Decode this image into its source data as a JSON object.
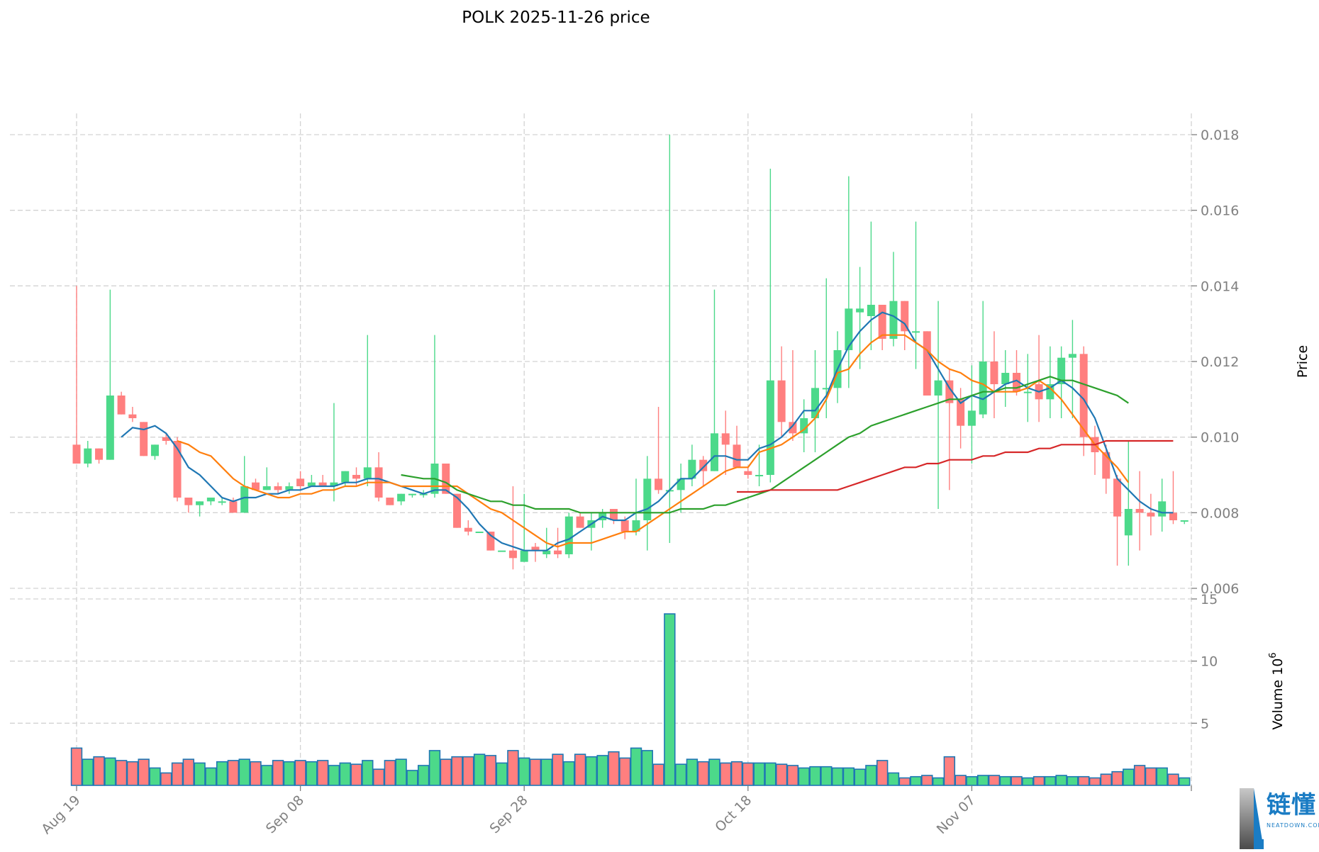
{
  "header": {
    "title": "POLK  2025-11-26  price"
  },
  "axes": {
    "price_label": "Price",
    "volume_label": "Volume  10",
    "volume_exp": "6",
    "price_ticks": [
      "0.018",
      "0.016",
      "0.014",
      "0.012",
      "0.010",
      "0.008",
      "0.006"
    ],
    "volume_ticks": [
      "15",
      "10",
      "5"
    ],
    "x_ticks": [
      "Aug 19",
      "Sep 08",
      "Sep 28",
      "Oct 18",
      "Nov 07"
    ]
  },
  "colors": {
    "up": "#4cd98a",
    "down": "#ff7f7f",
    "ma_blue": "#1f77b4",
    "ma_orange": "#ff7f0e",
    "ma_green": "#2ca02c",
    "ma_red": "#d62728",
    "grid": "#d3d3d3",
    "vol_edge": "#1f77b4"
  },
  "watermark": {
    "text": "链懂",
    "sub": "NEATDOWN.COM"
  },
  "chart_data": {
    "type": "candlestick",
    "title": "POLK  2025-11-26  price",
    "xlabel": "",
    "ylabel": "Price",
    "ylabel2": "Volume 10^6",
    "ylim": [
      0.0059,
      0.0185
    ],
    "ylim_volume": [
      0,
      15.8
    ],
    "grid": true,
    "x_tick_labels": [
      "Aug 19",
      "Sep 08",
      "Sep 28",
      "Oct 18",
      "Nov 07"
    ],
    "start_date": "2025-08-19",
    "end_date": "2025-11-26",
    "candles": [
      {
        "o": 0.0098,
        "h": 0.014,
        "l": 0.0093,
        "c": 0.0093,
        "v": 3.0
      },
      {
        "o": 0.0093,
        "h": 0.0099,
        "l": 0.0092,
        "c": 0.0097,
        "v": 2.1
      },
      {
        "o": 0.0097,
        "h": 0.0097,
        "l": 0.0093,
        "c": 0.0094,
        "v": 2.3
      },
      {
        "o": 0.0094,
        "h": 0.0139,
        "l": 0.0094,
        "c": 0.0111,
        "v": 2.2
      },
      {
        "o": 0.0111,
        "h": 0.0112,
        "l": 0.0106,
        "c": 0.0106,
        "v": 2.0
      },
      {
        "o": 0.0106,
        "h": 0.0108,
        "l": 0.0104,
        "c": 0.0105,
        "v": 1.9
      },
      {
        "o": 0.0104,
        "h": 0.0104,
        "l": 0.0095,
        "c": 0.0095,
        "v": 2.1
      },
      {
        "o": 0.0095,
        "h": 0.0098,
        "l": 0.0094,
        "c": 0.0098,
        "v": 1.4
      },
      {
        "o": 0.01,
        "h": 0.0101,
        "l": 0.0098,
        "c": 0.0099,
        "v": 1.0
      },
      {
        "o": 0.0099,
        "h": 0.01,
        "l": 0.0083,
        "c": 0.0084,
        "v": 1.8
      },
      {
        "o": 0.0084,
        "h": 0.0084,
        "l": 0.008,
        "c": 0.0082,
        "v": 2.1
      },
      {
        "o": 0.0082,
        "h": 0.0083,
        "l": 0.0079,
        "c": 0.0083,
        "v": 1.8
      },
      {
        "o": 0.0083,
        "h": 0.0084,
        "l": 0.0082,
        "c": 0.0084,
        "v": 1.4
      },
      {
        "o": 0.0083,
        "h": 0.0084,
        "l": 0.0082,
        "c": 0.0083,
        "v": 1.9
      },
      {
        "o": 0.0083,
        "h": 0.0084,
        "l": 0.008,
        "c": 0.008,
        "v": 2.0
      },
      {
        "o": 0.008,
        "h": 0.0095,
        "l": 0.008,
        "c": 0.0087,
        "v": 2.1
      },
      {
        "o": 0.0088,
        "h": 0.0089,
        "l": 0.0086,
        "c": 0.0086,
        "v": 1.9
      },
      {
        "o": 0.0086,
        "h": 0.0092,
        "l": 0.0086,
        "c": 0.0087,
        "v": 1.6
      },
      {
        "o": 0.0087,
        "h": 0.0088,
        "l": 0.0085,
        "c": 0.0086,
        "v": 2.0
      },
      {
        "o": 0.0086,
        "h": 0.0088,
        "l": 0.0085,
        "c": 0.0087,
        "v": 1.9
      },
      {
        "o": 0.0089,
        "h": 0.0091,
        "l": 0.0086,
        "c": 0.0087,
        "v": 2.0
      },
      {
        "o": 0.0087,
        "h": 0.009,
        "l": 0.0087,
        "c": 0.0088,
        "v": 1.9
      },
      {
        "o": 0.0088,
        "h": 0.009,
        "l": 0.0087,
        "c": 0.0087,
        "v": 2.0
      },
      {
        "o": 0.0087,
        "h": 0.0109,
        "l": 0.0083,
        "c": 0.0088,
        "v": 1.6
      },
      {
        "o": 0.0088,
        "h": 0.0091,
        "l": 0.0087,
        "c": 0.0091,
        "v": 1.8
      },
      {
        "o": 0.009,
        "h": 0.0092,
        "l": 0.0087,
        "c": 0.0089,
        "v": 1.7
      },
      {
        "o": 0.0089,
        "h": 0.0127,
        "l": 0.0087,
        "c": 0.0092,
        "v": 2.0
      },
      {
        "o": 0.0092,
        "h": 0.0096,
        "l": 0.0083,
        "c": 0.0084,
        "v": 1.3
      },
      {
        "o": 0.0084,
        "h": 0.0084,
        "l": 0.0082,
        "c": 0.0082,
        "v": 2.0
      },
      {
        "o": 0.0083,
        "h": 0.0085,
        "l": 0.0082,
        "c": 0.0085,
        "v": 2.1
      },
      {
        "o": 0.0085,
        "h": 0.0085,
        "l": 0.0084,
        "c": 0.0085,
        "v": 1.2
      },
      {
        "o": 0.0085,
        "h": 0.0086,
        "l": 0.0084,
        "c": 0.0085,
        "v": 1.6
      },
      {
        "o": 0.0085,
        "h": 0.0127,
        "l": 0.0084,
        "c": 0.0093,
        "v": 2.8
      },
      {
        "o": 0.0093,
        "h": 0.0093,
        "l": 0.0085,
        "c": 0.0085,
        "v": 2.1
      },
      {
        "o": 0.0085,
        "h": 0.0085,
        "l": 0.0076,
        "c": 0.0076,
        "v": 2.3
      },
      {
        "o": 0.0076,
        "h": 0.0078,
        "l": 0.0074,
        "c": 0.0075,
        "v": 2.3
      },
      {
        "o": 0.0075,
        "h": 0.0075,
        "l": 0.0075,
        "c": 0.0075,
        "v": 2.5
      },
      {
        "o": 0.0075,
        "h": 0.0075,
        "l": 0.007,
        "c": 0.007,
        "v": 2.4
      },
      {
        "o": 0.007,
        "h": 0.007,
        "l": 0.007,
        "c": 0.007,
        "v": 1.8
      },
      {
        "o": 0.007,
        "h": 0.0087,
        "l": 0.0065,
        "c": 0.0068,
        "v": 2.8
      },
      {
        "o": 0.0067,
        "h": 0.0085,
        "l": 0.0067,
        "c": 0.007,
        "v": 2.2
      },
      {
        "o": 0.0071,
        "h": 0.0072,
        "l": 0.0067,
        "c": 0.007,
        "v": 2.1
      },
      {
        "o": 0.0069,
        "h": 0.0076,
        "l": 0.0068,
        "c": 0.007,
        "v": 2.1
      },
      {
        "o": 0.007,
        "h": 0.0076,
        "l": 0.0068,
        "c": 0.0069,
        "v": 2.5
      },
      {
        "o": 0.0069,
        "h": 0.008,
        "l": 0.0068,
        "c": 0.0079,
        "v": 1.9
      },
      {
        "o": 0.0079,
        "h": 0.008,
        "l": 0.0076,
        "c": 0.0076,
        "v": 2.5
      },
      {
        "o": 0.0076,
        "h": 0.008,
        "l": 0.007,
        "c": 0.0078,
        "v": 2.3
      },
      {
        "o": 0.0078,
        "h": 0.0081,
        "l": 0.0076,
        "c": 0.008,
        "v": 2.4
      },
      {
        "o": 0.0081,
        "h": 0.0081,
        "l": 0.0077,
        "c": 0.0078,
        "v": 2.7
      },
      {
        "o": 0.0078,
        "h": 0.0079,
        "l": 0.0073,
        "c": 0.0075,
        "v": 2.2
      },
      {
        "o": 0.0075,
        "h": 0.0089,
        "l": 0.0074,
        "c": 0.0078,
        "v": 3.0
      },
      {
        "o": 0.0078,
        "h": 0.0095,
        "l": 0.007,
        "c": 0.0089,
        "v": 2.8
      },
      {
        "o": 0.0089,
        "h": 0.0108,
        "l": 0.0085,
        "c": 0.0086,
        "v": 1.7
      },
      {
        "o": 0.0086,
        "h": 0.018,
        "l": 0.0072,
        "c": 0.0086,
        "v": 13.8
      },
      {
        "o": 0.0086,
        "h": 0.0093,
        "l": 0.008,
        "c": 0.0089,
        "v": 1.7
      },
      {
        "o": 0.0089,
        "h": 0.0098,
        "l": 0.0087,
        "c": 0.0094,
        "v": 2.1
      },
      {
        "o": 0.0094,
        "h": 0.0095,
        "l": 0.0087,
        "c": 0.0091,
        "v": 1.9
      },
      {
        "o": 0.0091,
        "h": 0.0139,
        "l": 0.0091,
        "c": 0.0101,
        "v": 2.1
      },
      {
        "o": 0.0101,
        "h": 0.0107,
        "l": 0.009,
        "c": 0.0098,
        "v": 1.8
      },
      {
        "o": 0.0098,
        "h": 0.0103,
        "l": 0.0092,
        "c": 0.0092,
        "v": 1.9
      },
      {
        "o": 0.0091,
        "h": 0.0092,
        "l": 0.0089,
        "c": 0.009,
        "v": 1.8
      },
      {
        "o": 0.009,
        "h": 0.0098,
        "l": 0.0087,
        "c": 0.009,
        "v": 1.8
      },
      {
        "o": 0.009,
        "h": 0.0171,
        "l": 0.0088,
        "c": 0.0115,
        "v": 1.8
      },
      {
        "o": 0.0115,
        "h": 0.0124,
        "l": 0.01,
        "c": 0.0104,
        "v": 1.7
      },
      {
        "o": 0.0104,
        "h": 0.0123,
        "l": 0.0099,
        "c": 0.0101,
        "v": 1.6
      },
      {
        "o": 0.0101,
        "h": 0.011,
        "l": 0.0096,
        "c": 0.0105,
        "v": 1.4
      },
      {
        "o": 0.0105,
        "h": 0.0123,
        "l": 0.0096,
        "c": 0.0113,
        "v": 1.5
      },
      {
        "o": 0.0113,
        "h": 0.0142,
        "l": 0.0105,
        "c": 0.0113,
        "v": 1.5
      },
      {
        "o": 0.0113,
        "h": 0.0128,
        "l": 0.0109,
        "c": 0.0123,
        "v": 1.4
      },
      {
        "o": 0.0123,
        "h": 0.0169,
        "l": 0.0113,
        "c": 0.0134,
        "v": 1.4
      },
      {
        "o": 0.0133,
        "h": 0.0145,
        "l": 0.0118,
        "c": 0.0134,
        "v": 1.3
      },
      {
        "o": 0.0132,
        "h": 0.0157,
        "l": 0.0123,
        "c": 0.0135,
        "v": 1.6
      },
      {
        "o": 0.0135,
        "h": 0.0135,
        "l": 0.0123,
        "c": 0.0126,
        "v": 2.0
      },
      {
        "o": 0.0126,
        "h": 0.0149,
        "l": 0.0124,
        "c": 0.0136,
        "v": 1.0
      },
      {
        "o": 0.0136,
        "h": 0.0136,
        "l": 0.0123,
        "c": 0.0128,
        "v": 0.6
      },
      {
        "o": 0.0128,
        "h": 0.0157,
        "l": 0.0118,
        "c": 0.0128,
        "v": 0.7
      },
      {
        "o": 0.0128,
        "h": 0.0128,
        "l": 0.0111,
        "c": 0.0111,
        "v": 0.8
      },
      {
        "o": 0.0111,
        "h": 0.0136,
        "l": 0.0081,
        "c": 0.0115,
        "v": 0.6
      },
      {
        "o": 0.0115,
        "h": 0.0118,
        "l": 0.0086,
        "c": 0.0109,
        "v": 2.3
      },
      {
        "o": 0.011,
        "h": 0.0113,
        "l": 0.0097,
        "c": 0.0103,
        "v": 0.8
      },
      {
        "o": 0.0103,
        "h": 0.0119,
        "l": 0.0093,
        "c": 0.0107,
        "v": 0.7
      },
      {
        "o": 0.0106,
        "h": 0.0136,
        "l": 0.0105,
        "c": 0.012,
        "v": 0.8
      },
      {
        "o": 0.012,
        "h": 0.0128,
        "l": 0.0105,
        "c": 0.0114,
        "v": 0.8
      },
      {
        "o": 0.0114,
        "h": 0.0123,
        "l": 0.0108,
        "c": 0.0117,
        "v": 0.7
      },
      {
        "o": 0.0117,
        "h": 0.0123,
        "l": 0.0111,
        "c": 0.0112,
        "v": 0.7
      },
      {
        "o": 0.0112,
        "h": 0.0122,
        "l": 0.0104,
        "c": 0.0112,
        "v": 0.6
      },
      {
        "o": 0.0114,
        "h": 0.0127,
        "l": 0.0104,
        "c": 0.011,
        "v": 0.7
      },
      {
        "o": 0.011,
        "h": 0.0124,
        "l": 0.0105,
        "c": 0.0114,
        "v": 0.7
      },
      {
        "o": 0.0114,
        "h": 0.0124,
        "l": 0.0105,
        "c": 0.0121,
        "v": 0.8
      },
      {
        "o": 0.0121,
        "h": 0.0131,
        "l": 0.0105,
        "c": 0.0122,
        "v": 0.7
      },
      {
        "o": 0.0122,
        "h": 0.0124,
        "l": 0.0095,
        "c": 0.01,
        "v": 0.7
      },
      {
        "o": 0.01,
        "h": 0.0103,
        "l": 0.009,
        "c": 0.0096,
        "v": 0.6
      },
      {
        "o": 0.0096,
        "h": 0.0098,
        "l": 0.0085,
        "c": 0.0089,
        "v": 0.9
      },
      {
        "o": 0.0089,
        "h": 0.009,
        "l": 0.0066,
        "c": 0.0079,
        "v": 1.1
      },
      {
        "o": 0.0074,
        "h": 0.0099,
        "l": 0.0066,
        "c": 0.0081,
        "v": 1.3
      },
      {
        "o": 0.0081,
        "h": 0.0091,
        "l": 0.007,
        "c": 0.008,
        "v": 1.6
      },
      {
        "o": 0.008,
        "h": 0.0085,
        "l": 0.0074,
        "c": 0.0079,
        "v": 1.4
      },
      {
        "o": 0.0079,
        "h": 0.0089,
        "l": 0.0075,
        "c": 0.0083,
        "v": 1.4
      },
      {
        "o": 0.008,
        "h": 0.0091,
        "l": 0.0077,
        "c": 0.0078,
        "v": 0.9
      },
      {
        "o": 0.0078,
        "h": 0.0078,
        "l": 0.0077,
        "c": 0.0078,
        "v": 0.6
      }
    ],
    "moving_averages": [
      {
        "name": "MA short",
        "color": "#1f77b4",
        "start": 4,
        "values": [
          0.01,
          0.01025,
          0.0102,
          0.0103,
          0.0101,
          0.0097,
          0.0092,
          0.009,
          0.0087,
          0.0084,
          0.0083,
          0.0084,
          0.0084,
          0.0085,
          0.0085,
          0.0086,
          0.0086,
          0.0087,
          0.0087,
          0.0087,
          0.0088,
          0.0088,
          0.0089,
          0.0089,
          0.0088,
          0.0087,
          0.0086,
          0.0085,
          0.0086,
          0.0086,
          0.0084,
          0.0081,
          0.0077,
          0.0074,
          0.0072,
          0.0071,
          0.007,
          0.007,
          0.007,
          0.0072,
          0.0073,
          0.0075,
          0.0077,
          0.0079,
          0.0078,
          0.0078,
          0.008,
          0.0081,
          0.0083,
          0.0086,
          0.0089,
          0.0089,
          0.0092,
          0.0095,
          0.0095,
          0.0094,
          0.0094,
          0.0097,
          0.0098,
          0.01,
          0.0103,
          0.0107,
          0.0107,
          0.0111,
          0.0118,
          0.0124,
          0.0128,
          0.0131,
          0.0133,
          0.0132,
          0.013,
          0.0125,
          0.0123,
          0.0118,
          0.0113,
          0.0109,
          0.0111,
          0.011,
          0.0112,
          0.0114,
          0.0115,
          0.0113,
          0.0112,
          0.0113,
          0.0115,
          0.0113,
          0.011,
          0.0105,
          0.0097,
          0.0089,
          0.0086,
          0.0083,
          0.0081,
          0.008,
          0.008
        ]
      },
      {
        "name": "MA medium",
        "color": "#ff7f0e",
        "start": 9,
        "values": [
          0.0099,
          0.0098,
          0.0096,
          0.0095,
          0.0092,
          0.0089,
          0.0087,
          0.0086,
          0.0085,
          0.0084,
          0.0084,
          0.0085,
          0.0085,
          0.0086,
          0.0086,
          0.0087,
          0.0087,
          0.0088,
          0.0088,
          0.0088,
          0.0087,
          0.0087,
          0.0087,
          0.0087,
          0.0087,
          0.0087,
          0.0085,
          0.0083,
          0.0081,
          0.008,
          0.0078,
          0.0076,
          0.0074,
          0.0072,
          0.0071,
          0.0072,
          0.0072,
          0.0072,
          0.0073,
          0.0074,
          0.0075,
          0.0075,
          0.0077,
          0.0079,
          0.0081,
          0.0083,
          0.0085,
          0.0087,
          0.0089,
          0.0091,
          0.0092,
          0.0092,
          0.0096,
          0.0097,
          0.0098,
          0.01,
          0.0102,
          0.0105,
          0.011,
          0.0117,
          0.0118,
          0.0122,
          0.0125,
          0.0127,
          0.0127,
          0.0127,
          0.0125,
          0.0123,
          0.012,
          0.0118,
          0.0117,
          0.0115,
          0.0114,
          0.0112,
          0.0112,
          0.0112,
          0.0113,
          0.0115,
          0.0113,
          0.011,
          0.0106,
          0.0102,
          0.0098,
          0.0095,
          0.0092,
          0.0088
        ]
      },
      {
        "name": "MA long",
        "color": "#2ca02c",
        "start": 29,
        "values": [
          0.009,
          0.00895,
          0.0089,
          0.0089,
          0.0088,
          0.0086,
          0.0085,
          0.0084,
          0.0083,
          0.0083,
          0.0082,
          0.0082,
          0.0081,
          0.0081,
          0.0081,
          0.0081,
          0.008,
          0.008,
          0.008,
          0.008,
          0.008,
          0.008,
          0.008,
          0.008,
          0.008,
          0.0081,
          0.0081,
          0.0081,
          0.0082,
          0.0082,
          0.0083,
          0.0084,
          0.0085,
          0.0086,
          0.0088,
          0.009,
          0.0092,
          0.0094,
          0.0096,
          0.0098,
          0.01,
          0.0101,
          0.0103,
          0.0104,
          0.0105,
          0.0106,
          0.0107,
          0.0108,
          0.0109,
          0.011,
          0.011,
          0.0111,
          0.0112,
          0.0112,
          0.0113,
          0.0113,
          0.0114,
          0.0115,
          0.0116,
          0.0115,
          0.0115,
          0.0114,
          0.0113,
          0.0112,
          0.0111,
          0.0109
        ]
      },
      {
        "name": "MA very long",
        "color": "#d62728",
        "start": 59,
        "values": [
          0.00855,
          0.00855,
          0.00855,
          0.0086,
          0.0086,
          0.0086,
          0.0086,
          0.0086,
          0.0086,
          0.0086,
          0.0087,
          0.0088,
          0.0089,
          0.009,
          0.0091,
          0.0092,
          0.0092,
          0.0093,
          0.0093,
          0.0094,
          0.0094,
          0.0094,
          0.0095,
          0.0095,
          0.0096,
          0.0096,
          0.0096,
          0.0097,
          0.0097,
          0.0098,
          0.0098,
          0.0098,
          0.0098,
          0.0099,
          0.0099,
          0.0099,
          0.0099,
          0.0099,
          0.0099,
          0.0099
        ]
      }
    ]
  }
}
